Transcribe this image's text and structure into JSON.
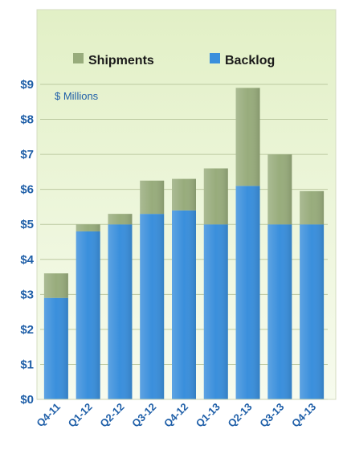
{
  "chart_data": {
    "type": "bar",
    "stacked": true,
    "categories": [
      "Q4-11",
      "Q1-12",
      "Q2-12",
      "Q3-12",
      "Q4-12",
      "Q1-13",
      "Q2-13",
      "Q3-13",
      "Q4-13"
    ],
    "series": [
      {
        "name": "Backlog",
        "values": [
          2.9,
          4.8,
          5.0,
          5.3,
          5.4,
          5.0,
          6.1,
          5.0,
          5.0
        ],
        "color": "#3a8fdc"
      },
      {
        "name": "Shipments",
        "values": [
          0.7,
          0.2,
          0.3,
          0.95,
          0.9,
          1.6,
          2.8,
          2.0,
          0.95
        ],
        "color": "#98ac7c"
      }
    ],
    "legend_order": [
      "Shipments",
      "Backlog"
    ],
    "legend_placement": "top",
    "unit_label": "$ Millions",
    "y_tick_labels": [
      "$0",
      "$1",
      "$2",
      "$3",
      "$4",
      "$5",
      "$6",
      "$7",
      "$8",
      "$9"
    ],
    "ylim": [
      0,
      9
    ],
    "grid": true,
    "colors": {
      "background_top": "#e2f0c6",
      "background_bottom": "#f7fbee",
      "axis_text": "#1f5fa8",
      "gridline": "#bcc9a0"
    }
  }
}
